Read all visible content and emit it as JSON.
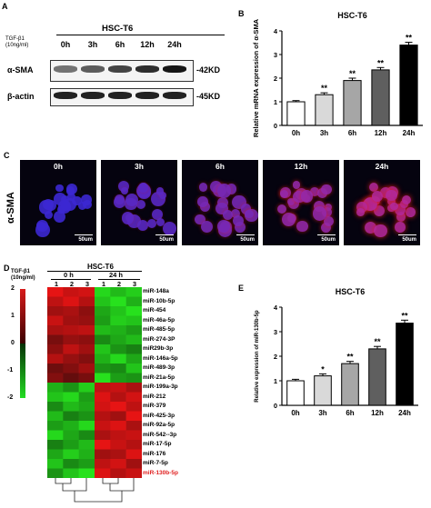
{
  "panels": {
    "A": "A",
    "B": "B",
    "C": "C",
    "D": "D",
    "E": "E"
  },
  "panel_a": {
    "title": "HSC-T6",
    "treatment_line1": "TGF-β1",
    "treatment_line2": "(10ng/ml)",
    "timepoints": [
      "0h",
      "3h",
      "6h",
      "12h",
      "24h"
    ],
    "rows": [
      {
        "label": "α-SMA",
        "size": "-42KD"
      },
      {
        "label": "β-actin",
        "size": "-45KD"
      }
    ]
  },
  "panel_b": {
    "chart_data": {
      "type": "bar",
      "title": "HSC-T6",
      "ylabel": "Relative mRNA expression of α-SMA",
      "categories": [
        "0h",
        "3h",
        "6h",
        "12h",
        "24h"
      ],
      "values": [
        1.0,
        1.3,
        1.9,
        2.35,
        3.4
      ],
      "errors": [
        0.05,
        0.08,
        0.1,
        0.1,
        0.12
      ],
      "significance": [
        "",
        "**",
        "**",
        "**",
        "**"
      ],
      "ylim": [
        0,
        4
      ],
      "yticks": [
        0,
        1,
        2,
        3,
        4
      ],
      "colors": [
        "#ffffff",
        "#d9d9d9",
        "#a6a6a6",
        "#5f5f5f",
        "#000000"
      ]
    }
  },
  "panel_c": {
    "stain": "α-SMA",
    "timepoints": [
      "0h",
      "3h",
      "6h",
      "12h",
      "24h"
    ],
    "scale": "50um"
  },
  "panel_d": {
    "title": "HSC-T6",
    "treatment_line1": "TGF-β1",
    "treatment_line2": "(10ng/ml)",
    "groups": [
      "0 h",
      "24 h"
    ],
    "replicates": [
      "1",
      "2",
      "3",
      "1",
      "2",
      "3"
    ],
    "legend_ticks": [
      "2",
      "1",
      "0",
      "-1",
      "-2"
    ],
    "mirnas": [
      "miR-148a",
      "miR-10b-5p",
      "miR-454",
      "miR-46a-5p",
      "miR-485-5p",
      "miR-274-3P",
      "miR29b-3p",
      "miR-146a-5p",
      "miR-489-3p",
      "miR-21a-5p",
      "miR-199a-3p",
      "miR-212",
      "miR-379",
      "miR-425-3p",
      "miR-92a-5p",
      "miR-542--3p",
      "miR-17-5p",
      "miR-176",
      "miR-7-5p",
      "miR-130b-5p"
    ],
    "highlight_index": 19,
    "highlight_color": "#e02020",
    "values": [
      [
        1.9,
        1.6,
        1.7,
        -1.8,
        -1.5,
        -1.7
      ],
      [
        1.5,
        1.8,
        1.4,
        -1.6,
        -1.9,
        -1.4
      ],
      [
        1.2,
        1.3,
        1.0,
        -1.3,
        -1.6,
        -1.9
      ],
      [
        1.6,
        1.2,
        1.1,
        -1.2,
        -1.7,
        -1.6
      ],
      [
        1.3,
        1.4,
        1.5,
        -1.5,
        -1.4,
        -1.2
      ],
      [
        0.8,
        1.1,
        1.0,
        -1.0,
        -1.3,
        -1.5
      ],
      [
        1.0,
        1.5,
        1.2,
        -1.6,
        -1.1,
        -0.9
      ],
      [
        1.4,
        1.1,
        0.9,
        -1.4,
        -1.8,
        -1.3
      ],
      [
        0.7,
        0.9,
        1.2,
        -1.1,
        -1.0,
        -1.6
      ],
      [
        0.9,
        0.6,
        0.8,
        -1.9,
        -1.2,
        -1.1
      ],
      [
        -1.4,
        -1.1,
        -1.7,
        1.5,
        1.6,
        1.3
      ],
      [
        -1.6,
        -1.8,
        -1.2,
        1.8,
        1.4,
        1.7
      ],
      [
        -1.0,
        -1.5,
        -1.3,
        1.7,
        1.9,
        1.5
      ],
      [
        -1.5,
        -0.9,
        -1.1,
        1.4,
        1.2,
        1.9
      ],
      [
        -1.2,
        -1.4,
        -1.8,
        1.6,
        1.8,
        1.3
      ],
      [
        -1.8,
        -1.3,
        -1.0,
        1.3,
        1.5,
        1.6
      ],
      [
        -0.9,
        -1.2,
        -1.5,
        1.9,
        1.6,
        1.4
      ],
      [
        -1.3,
        -1.7,
        -1.4,
        1.2,
        1.3,
        1.8
      ],
      [
        -1.6,
        -1.0,
        -1.2,
        1.5,
        1.7,
        1.2
      ],
      [
        -1.1,
        -1.6,
        -1.9,
        1.8,
        1.4,
        1.6
      ]
    ]
  },
  "panel_e": {
    "chart_data": {
      "type": "bar",
      "title": "HSC-T6",
      "ylabel": "Relative expression of miR-130b-5p",
      "categories": [
        "0h",
        "3h",
        "6h",
        "12h",
        "24h"
      ],
      "values": [
        1.0,
        1.2,
        1.7,
        2.3,
        3.35
      ],
      "errors": [
        0.06,
        0.08,
        0.09,
        0.1,
        0.12
      ],
      "significance": [
        "",
        "*",
        "**",
        "**",
        "**"
      ],
      "ylim": [
        0,
        4
      ],
      "yticks": [
        0,
        1,
        2,
        3,
        4
      ],
      "colors": [
        "#ffffff",
        "#d9d9d9",
        "#a6a6a6",
        "#5f5f5f",
        "#000000"
      ]
    }
  }
}
